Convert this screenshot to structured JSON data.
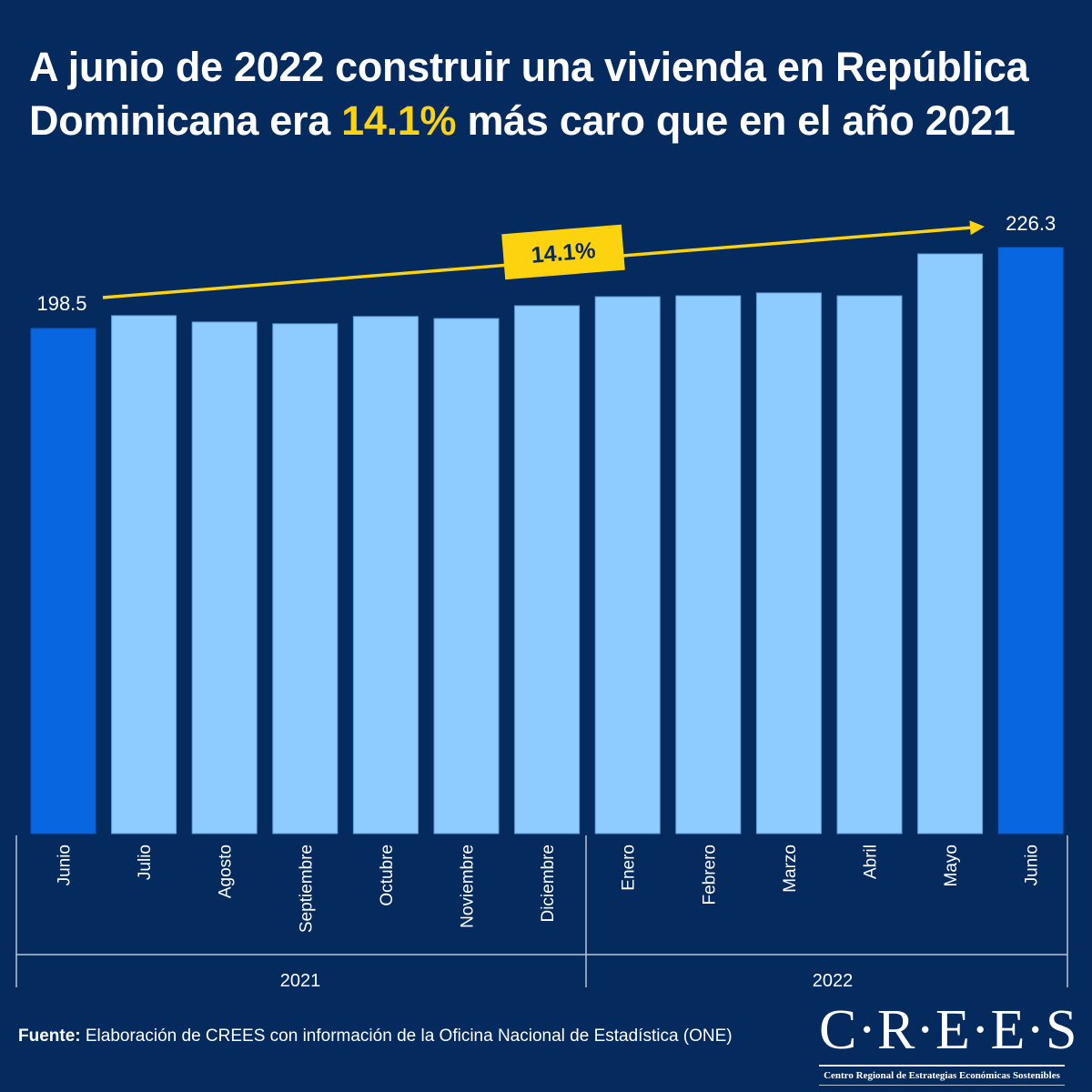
{
  "title": {
    "part1": "A junio de 2022 construir una vivienda en República Dominicana era ",
    "highlight": "14.1%",
    "part2": " más caro que en el año 2021"
  },
  "colors": {
    "background": "#042a5e",
    "bar_highlight": "#0866e0",
    "bar_normal": "#8ecbff",
    "accent": "#fdd20f",
    "text": "#ffffff"
  },
  "chart_data": {
    "type": "bar",
    "title": "A junio de 2022 construir una vivienda en República Dominicana era 14.1% más caro que en el año 2021",
    "xlabel": "",
    "ylabel": "",
    "categories": [
      "Junio",
      "Julio",
      "Agosto",
      "Septiembre",
      "Octubre",
      "Noviembre",
      "Diciembre",
      "Enero",
      "Febrero",
      "Marzo",
      "Abril",
      "Mayo",
      "Junio"
    ],
    "groups": [
      {
        "label": "2021",
        "categories": [
          "Junio",
          "Julio",
          "Agosto",
          "Septiembre",
          "Octubre",
          "Noviembre",
          "Diciembre"
        ]
      },
      {
        "label": "2022",
        "categories": [
          "Enero",
          "Febrero",
          "Marzo",
          "Abril",
          "Mayo",
          "Junio"
        ]
      }
    ],
    "values": [
      198.5,
      202.9,
      200.7,
      200.1,
      202.6,
      201.9,
      206.3,
      209.4,
      209.7,
      210.7,
      209.7,
      224.1,
      226.3
    ],
    "highlighted": [
      0,
      12
    ],
    "data_labels": [
      {
        "index": 0,
        "text": "198.5"
      },
      {
        "index": 12,
        "text": "226.3"
      }
    ],
    "annotation": {
      "text": "14.1%",
      "from_index": 0,
      "to_index": 12
    },
    "ylim": [
      25,
      230
    ],
    "grid": false,
    "legend": "none"
  },
  "footer": {
    "source_label": "Fuente:",
    "source_text": " Elaboración de CREES con información de la Oficina Nacional de Estadística (ONE)"
  },
  "logo": {
    "name": "C·R·E·E·S",
    "subtitle": "Centro Regional de Estrategias Económicas Sostenibles"
  }
}
